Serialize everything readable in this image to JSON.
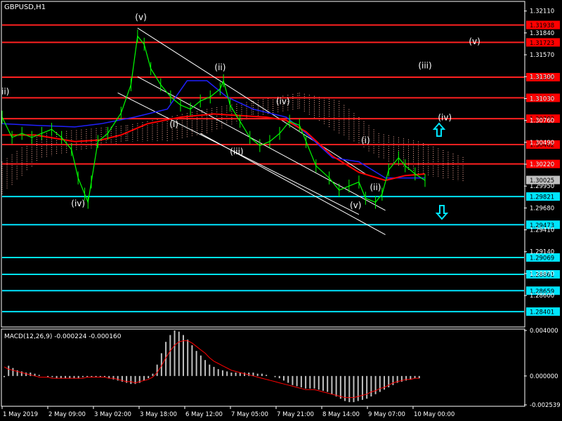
{
  "chart_data": {
    "type": "line",
    "title": "GBPUSD,H1",
    "indicator_title": "MACD(12,26,9) -0.000224 -0.000160",
    "price_ylim": [
      1.2822,
      1.3222
    ],
    "price_ticks": [
      "1.32110",
      "1.31840",
      "1.31570",
      "1.31300",
      "1.31030",
      "1.30760",
      "1.30490",
      "1.30220",
      "1.29950",
      "1.29680",
      "1.29410",
      "1.29140",
      "1.28870",
      "1.28600"
    ],
    "macd_ylim": [
      -0.002539,
      0.004
    ],
    "macd_ticks": [
      "0.004000",
      "0.000000",
      "-0.002539"
    ],
    "x_labels": [
      "1 May 2019",
      "2 May 09:00",
      "3 May 02:00",
      "3 May 18:00",
      "6 May 12:00",
      "7 May 05:00",
      "7 May 21:00",
      "8 May 14:00",
      "9 May 07:00",
      "10 May 00:00"
    ],
    "current_price": "1.30025",
    "resistance_levels": [
      "1.31938",
      "1.31723",
      "1.31294",
      "1.31039",
      "1.30782",
      "1.30462",
      "1.30223"
    ],
    "support_levels": [
      "1.29821",
      "1.29473",
      "1.29069",
      "1.28861",
      "1.28659",
      "1.28401"
    ],
    "level_values": {
      "resistance": [
        1.31938,
        1.31723,
        1.31294,
        1.31039,
        1.30782,
        1.30462,
        1.30223
      ],
      "support": [
        1.29821,
        1.29473,
        1.29069,
        1.28861,
        1.28659,
        1.28401
      ]
    },
    "wave_labels": [
      "(v)",
      "(ii)",
      "(iv)",
      "(i)",
      "(iii)",
      "(iv)",
      "(i)",
      "(ii)",
      "(v)",
      "(v)",
      "(iii)",
      "(iv)",
      "ii)"
    ],
    "price_path": [
      [
        0,
        1.308
      ],
      [
        3,
        1.3055
      ],
      [
        6,
        1.306
      ],
      [
        9,
        1.3055
      ],
      [
        12,
        1.306
      ],
      [
        15,
        1.3065
      ],
      [
        18,
        1.3055
      ],
      [
        21,
        1.304
      ],
      [
        23,
        1.3005
      ],
      [
        25,
        1.2985
      ],
      [
        26,
        1.2975
      ],
      [
        27,
        1.3
      ],
      [
        29,
        1.305
      ],
      [
        32,
        1.306
      ],
      [
        36,
        1.3085
      ],
      [
        39,
        1.312
      ],
      [
        41,
        1.318
      ],
      [
        43,
        1.317
      ],
      [
        45,
        1.314
      ],
      [
        48,
        1.312
      ],
      [
        51,
        1.3105
      ],
      [
        54,
        1.3095
      ],
      [
        57,
        1.309
      ],
      [
        60,
        1.31
      ],
      [
        63,
        1.3105
      ],
      [
        66,
        1.3115
      ],
      [
        67,
        1.3125
      ],
      [
        69,
        1.3095
      ],
      [
        72,
        1.3075
      ],
      [
        75,
        1.3055
      ],
      [
        78,
        1.3045
      ],
      [
        81,
        1.305
      ],
      [
        84,
        1.306
      ],
      [
        87,
        1.3075
      ],
      [
        90,
        1.307
      ],
      [
        92,
        1.305
      ],
      [
        95,
        1.302
      ],
      [
        99,
        1.3005
      ],
      [
        102,
        1.299
      ],
      [
        105,
        1.2995
      ],
      [
        108,
        1.3
      ],
      [
        110,
        1.298
      ],
      [
        113,
        1.2975
      ],
      [
        115,
        1.2985
      ],
      [
        117,
        1.3015
      ],
      [
        120,
        1.303
      ],
      [
        122,
        1.302
      ],
      [
        125,
        1.301
      ],
      [
        128,
        1.3002
      ]
    ],
    "ma_fast": [
      [
        0,
        1.3058
      ],
      [
        10,
        1.3058
      ],
      [
        22,
        1.305
      ],
      [
        30,
        1.3052
      ],
      [
        36,
        1.3058
      ],
      [
        44,
        1.3072
      ],
      [
        54,
        1.308
      ],
      [
        64,
        1.3084
      ],
      [
        72,
        1.3082
      ],
      [
        80,
        1.308
      ],
      [
        86,
        1.3076
      ],
      [
        92,
        1.3062
      ],
      [
        100,
        1.3032
      ],
      [
        108,
        1.3012
      ],
      [
        116,
        1.3002
      ],
      [
        122,
        1.3008
      ],
      [
        128,
        1.301
      ]
    ],
    "ma_blue": [
      [
        0,
        1.3072
      ],
      [
        10,
        1.307
      ],
      [
        22,
        1.3068
      ],
      [
        30,
        1.3072
      ],
      [
        40,
        1.308
      ],
      [
        50,
        1.309
      ],
      [
        56,
        1.3125
      ],
      [
        62,
        1.3125
      ],
      [
        68,
        1.3105
      ],
      [
        76,
        1.309
      ],
      [
        86,
        1.308
      ],
      [
        92,
        1.306
      ],
      [
        100,
        1.303
      ],
      [
        108,
        1.3025
      ],
      [
        116,
        1.3005
      ],
      [
        128,
        1.3005
      ]
    ],
    "macd_main": [
      -0.0001,
      0.0009,
      0.0007,
      0.0005,
      0.0004,
      0.0003,
      0.0003,
      0.0002,
      0.0001,
      0.0,
      -0.0001,
      -0.0001,
      -0.0002,
      -0.0002,
      -0.0002,
      -0.0002,
      -0.0002,
      -0.0002,
      -0.0001,
      -0.0001,
      -0.0001,
      -0.0001,
      -0.0001,
      -0.0001,
      -0.0002,
      -0.0003,
      -0.0004,
      -0.0005,
      -0.0006,
      -0.0007,
      -0.0007,
      -0.0006,
      -0.0004,
      -0.0002,
      0.0002,
      0.001,
      0.002,
      0.003,
      0.0036,
      0.004,
      0.0039,
      0.0036,
      0.0032,
      0.0027,
      0.0022,
      0.0018,
      0.0014,
      0.001,
      0.0008,
      0.0006,
      0.0005,
      0.0004,
      0.0003,
      0.0003,
      0.0003,
      0.0003,
      0.0003,
      0.0003,
      0.0002,
      0.0002,
      0.0001,
      0.0,
      -0.0001,
      -0.0002,
      -0.0004,
      -0.0006,
      -0.0008,
      -0.0009,
      -0.001,
      -0.0011,
      -0.0011,
      -0.0011,
      -0.0012,
      -0.0013,
      -0.0014,
      -0.0016,
      -0.0018,
      -0.002,
      -0.0022,
      -0.0023,
      -0.0023,
      -0.0022,
      -0.0021,
      -0.002,
      -0.0018,
      -0.0016,
      -0.0014,
      -0.0012,
      -0.001,
      -0.0008,
      -0.0006,
      -0.0005,
      -0.0004,
      -0.0003,
      -0.0002,
      -0.0002
    ],
    "macd_signal": [
      0.0008,
      0.0006,
      0.0005,
      0.0004,
      0.0003,
      0.0002,
      0.0001,
      0.0,
      -0.0001,
      -0.0001,
      -0.0001,
      -0.0002,
      -0.0002,
      -0.0002,
      -0.0002,
      -0.0002,
      -0.0002,
      -0.0002,
      -0.0002,
      -0.0001,
      -0.0001,
      -0.0001,
      -0.0001,
      -0.0001,
      -0.0002,
      -0.0002,
      -0.0003,
      -0.0004,
      -0.0005,
      -0.0005,
      -0.0006,
      -0.0005,
      -0.0004,
      -0.0003,
      -0.0001,
      0.0003,
      0.0009,
      0.0016,
      0.0022,
      0.0027,
      0.003,
      0.0031,
      0.0031,
      0.0029,
      0.0026,
      0.0023,
      0.002,
      0.0016,
      0.0013,
      0.0011,
      0.0009,
      0.0007,
      0.0005,
      0.0004,
      0.0003,
      0.0002,
      0.0001,
      0.0,
      -0.0001,
      -0.0002,
      -0.0003,
      -0.0004,
      -0.0005,
      -0.0006,
      -0.0007,
      -0.0008,
      -0.0009,
      -0.001,
      -0.0011,
      -0.0012,
      -0.0012,
      -0.0012,
      -0.0013,
      -0.0014,
      -0.0015,
      -0.0016,
      -0.0017,
      -0.0018,
      -0.0019,
      -0.0019,
      -0.0019,
      -0.0018,
      -0.0017,
      -0.0016,
      -0.0014,
      -0.0013,
      -0.0011,
      -0.001,
      -0.0008,
      -0.0006,
      -0.0005,
      -0.0004,
      -0.0003,
      -0.0003,
      -0.0002,
      -0.0002
    ],
    "colors": {
      "background": "#000000",
      "axis_text": "#ffffff",
      "grid_border": "#ffffff",
      "price": "#00ff00",
      "resistance": "#ff2020",
      "support": "#00e5ff",
      "ma_fast": "#ff0000",
      "ma_blue": "#2020ff",
      "macd_hist": "#c0c0c0",
      "macd_signal": "#ff0000",
      "channel": "#ffffff",
      "label_resistance_bg": "#ff0000",
      "label_support_bg": "#00e5ff",
      "current_price_bg": "#c0c0c0",
      "ichimoku_cloud": "#ffb0a0",
      "arrow": "#00e5ff"
    }
  }
}
